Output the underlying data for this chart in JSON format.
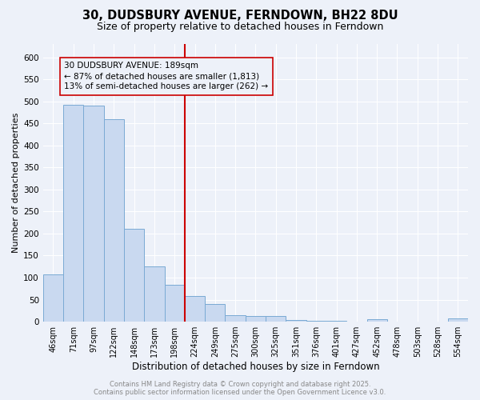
{
  "title": "30, DUDSBURY AVENUE, FERNDOWN, BH22 8DU",
  "subtitle": "Size of property relative to detached houses in Ferndown",
  "xlabel": "Distribution of detached houses by size in Ferndown",
  "ylabel": "Number of detached properties",
  "bar_color": "#c9d9f0",
  "bar_edge_color": "#7aaad4",
  "background_color": "#edf1f9",
  "grid_color": "#ffffff",
  "vline_color": "#cc0000",
  "annotation_text_line1": "30 DUDSBURY AVENUE: 189sqm",
  "annotation_text_line2": "← 87% of detached houses are smaller (1,813)",
  "annotation_text_line3": "13% of semi-detached houses are larger (262) →",
  "annotation_box_edge": "#cc0000",
  "footer_text": "Contains HM Land Registry data © Crown copyright and database right 2025.\nContains public sector information licensed under the Open Government Licence v3.0.",
  "categories": [
    "46sqm",
    "71sqm",
    "97sqm",
    "122sqm",
    "148sqm",
    "173sqm",
    "198sqm",
    "224sqm",
    "249sqm",
    "275sqm",
    "300sqm",
    "325sqm",
    "351sqm",
    "376sqm",
    "401sqm",
    "427sqm",
    "452sqm",
    "478sqm",
    "503sqm",
    "528sqm",
    "554sqm"
  ],
  "values": [
    107,
    492,
    490,
    460,
    210,
    125,
    83,
    58,
    40,
    15,
    12,
    12,
    3,
    2,
    2,
    1,
    6,
    1,
    1,
    1,
    7
  ],
  "ylim": [
    0,
    630
  ],
  "yticks": [
    0,
    50,
    100,
    150,
    200,
    250,
    300,
    350,
    400,
    450,
    500,
    550,
    600
  ],
  "vline_index": 6.5,
  "figwidth": 6.0,
  "figheight": 5.0,
  "dpi": 100
}
